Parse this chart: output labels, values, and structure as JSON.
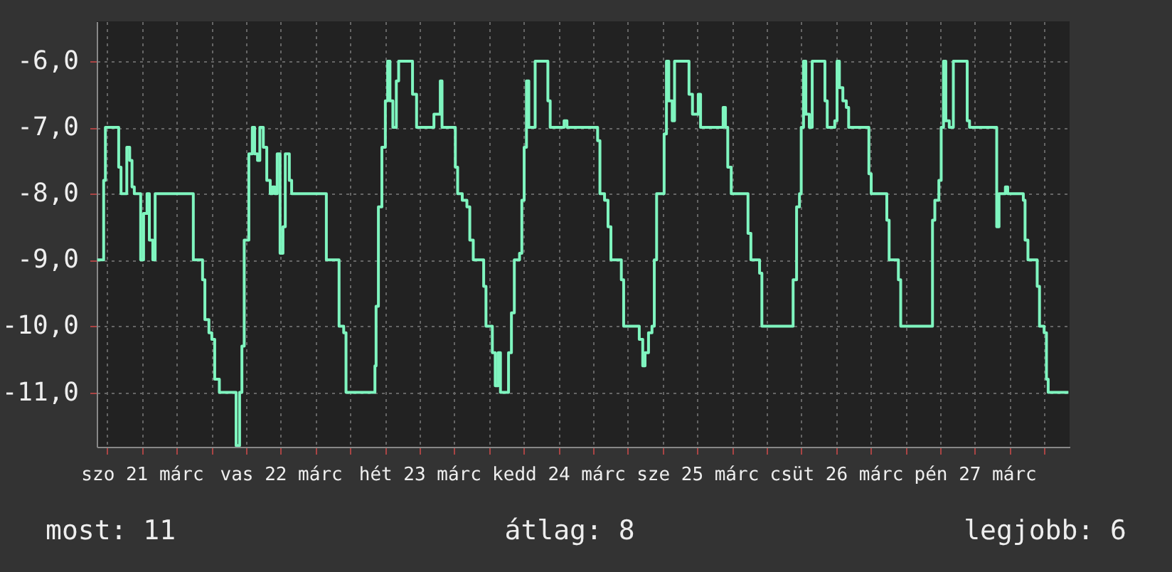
{
  "chart_data": {
    "type": "step",
    "color": "#7ff5bf",
    "x": [
      "--03-21T04:18",
      "--03-21T05:24",
      "--03-21T05:42",
      "--03-21T08:00",
      "--03-21T08:24",
      "--03-21T09:24",
      "--03-21T09:54",
      "--03-21T10:18",
      "--03-21T10:42",
      "--03-21T11:48",
      "--03-21T12:18",
      "--03-21T12:54",
      "--03-21T13:18",
      "--03-21T13:54",
      "--03-21T14:18",
      "--03-21T20:54",
      "--03-21T22:30",
      "--03-21T22:54",
      "--03-21T23:36",
      "--03-22T00:06",
      "--03-22T00:36",
      "--03-22T01:24",
      "--03-22T04:18",
      "--03-22T04:54",
      "--03-22T05:18",
      "--03-22T05:42",
      "--03-22T06:30",
      "--03-22T07:06",
      "--03-22T07:30",
      "--03-22T08:00",
      "--03-22T08:24",
      "--03-22T09:00",
      "--03-22T09:36",
      "--03-22T10:12",
      "--03-22T10:36",
      "--03-22T11:00",
      "--03-22T11:24",
      "--03-22T11:54",
      "--03-22T12:24",
      "--03-22T12:48",
      "--03-22T13:30",
      "--03-22T13:54",
      "--03-22T19:54",
      "--03-22T22:06",
      "--03-22T22:54",
      "--03-22T23:18",
      "--03-23T04:18",
      "--03-23T04:30",
      "--03-23T04:54",
      "--03-23T05:30",
      "--03-23T06:06",
      "--03-23T06:30",
      "--03-23T06:54",
      "--03-23T07:24",
      "--03-23T08:00",
      "--03-23T08:24",
      "--03-23T10:48",
      "--03-23T11:30",
      "--03-23T14:30",
      "--03-23T15:36",
      "--03-23T15:54",
      "--03-23T18:12",
      "--03-23T18:36",
      "--03-23T19:24",
      "--03-23T20:12",
      "--03-23T20:42",
      "--03-23T21:18",
      "--03-23T23:06",
      "--03-23T23:30",
      "--03-24T00:36",
      "--03-24T01:06",
      "--03-24T01:36",
      "--03-24T02:00",
      "--03-24T03:24",
      "--03-24T03:54",
      "--03-24T04:24",
      "--03-24T05:18",
      "--03-24T05:42",
      "--03-24T06:06",
      "--03-24T06:30",
      "--03-24T06:54",
      "--03-24T08:00",
      "--03-24T10:12",
      "--03-24T10:36",
      "--03-24T13:00",
      "--03-24T13:30",
      "--03-24T18:48",
      "--03-24T19:12",
      "--03-24T20:00",
      "--03-24T20:36",
      "--03-24T21:06",
      "--03-24T22:54",
      "--03-24T23:18",
      "--03-25T02:00",
      "--03-25T02:36",
      "--03-25T03:00",
      "--03-25T03:36",
      "--03-25T04:12",
      "--03-25T04:36",
      "--03-25T05:00",
      "--03-25T06:18",
      "--03-25T06:42",
      "--03-25T07:06",
      "--03-25T07:42",
      "--03-25T08:06",
      "--03-25T10:36",
      "--03-25T11:12",
      "--03-25T12:12",
      "--03-25T12:36",
      "--03-25T16:30",
      "--03-25T16:54",
      "--03-25T17:18",
      "--03-25T17:54",
      "--03-25T20:48",
      "--03-25T21:18",
      "--03-25T22:48",
      "--03-25T23:12",
      "--03-26T04:36",
      "--03-26T05:12",
      "--03-26T05:42",
      "--03-26T06:00",
      "--03-26T06:24",
      "--03-26T06:48",
      "--03-26T07:24",
      "--03-26T07:54",
      "--03-26T10:06",
      "--03-26T10:30",
      "--03-26T11:48",
      "--03-26T12:12",
      "--03-26T12:36",
      "--03-26T13:12",
      "--03-26T13:48",
      "--03-26T14:12",
      "--03-26T17:42",
      "--03-26T18:06",
      "--03-26T20:48",
      "--03-26T21:12",
      "--03-26T22:48",
      "--03-26T23:12",
      "--03-27T04:42",
      "--03-27T05:06",
      "--03-27T05:48",
      "--03-27T06:12",
      "--03-27T06:36",
      "--03-27T07:00",
      "--03-27T07:36",
      "--03-27T08:18",
      "--03-27T10:42",
      "--03-27T11:06",
      "--03-27T15:48",
      "--03-27T16:12",
      "--03-27T17:18",
      "--03-27T17:42",
      "--03-27T20:24",
      "--03-27T20:42",
      "--03-27T21:12",
      "--03-27T22:48",
      "--03-27T23:12",
      "--03-28T00:00",
      "--03-28T00:24",
      "--03-28T00:42",
      "--03-28T04:12"
    ],
    "values": [
      -9,
      -7.8,
      -7,
      -7.6,
      -8,
      -7.3,
      -7.5,
      -7.9,
      -8,
      -9,
      -8.3,
      -8,
      -8.7,
      -9,
      -8,
      -9,
      -9.3,
      -9.9,
      -10.1,
      -10.2,
      -10.8,
      -11,
      -11.8,
      -11,
      -10.3,
      -8.7,
      -7.4,
      -7,
      -7.4,
      -7.5,
      -7,
      -7.3,
      -7.8,
      -8,
      -7.9,
      -8,
      -7.4,
      -8.9,
      -8.5,
      -7.4,
      -7.8,
      -8,
      -9,
      -10,
      -10.1,
      -11,
      -10.6,
      -9.7,
      -8.2,
      -7.3,
      -6.6,
      -6,
      -6.6,
      -7,
      -6.3,
      -6,
      -6.5,
      -7,
      -6.8,
      -6.3,
      -7,
      -7.6,
      -8,
      -8.1,
      -8.2,
      -8.7,
      -9,
      -9.4,
      -10,
      -10.4,
      -10.9,
      -10.4,
      -11,
      -10.4,
      -9.8,
      -9,
      -8.9,
      -8.1,
      -7.3,
      -6.3,
      -7,
      -6,
      -6.6,
      -7,
      -6.9,
      -7,
      -7.2,
      -8,
      -8.1,
      -8.5,
      -9,
      -9.3,
      -10,
      -10.2,
      -10.6,
      -10.4,
      -10.1,
      -10,
      -9,
      -8,
      -7.1,
      -6,
      -6.6,
      -6.9,
      -6,
      -6.5,
      -6.8,
      -6.5,
      -7,
      -6.7,
      -7,
      -7.6,
      -8,
      -8.6,
      -9,
      -9.2,
      -10,
      -9.3,
      -8.2,
      -8,
      -7,
      -6,
      -6.8,
      -7,
      -6,
      -6.6,
      -7,
      -6.9,
      -6,
      -6.4,
      -6.6,
      -6.7,
      -7,
      -7.7,
      -8,
      -8.4,
      -9,
      -9.3,
      -10,
      -8.4,
      -8.1,
      -7.8,
      -7,
      -6,
      -6.9,
      -7,
      -6,
      -6.9,
      -7,
      -8.5,
      -8,
      -7.9,
      -8,
      -8.1,
      -8.7,
      -9,
      -9.4,
      -10,
      -10.1,
      -10.8,
      -11,
      -11
    ],
    "xlim": [
      "--03-21T04:12",
      "--03-28T04:24"
    ],
    "xticks": [
      {
        "value": "--03-21T06:00",
        "label": null
      },
      {
        "value": "--03-21T12:00",
        "label": "szo 21 márc"
      },
      {
        "value": "--03-21T18:00",
        "label": null
      },
      {
        "value": "--03-22T00:00",
        "label": null
      },
      {
        "value": "--03-22T06:00",
        "label": null
      },
      {
        "value": "--03-22T12:00",
        "label": "vas 22 márc"
      },
      {
        "value": "--03-22T18:00",
        "label": null
      },
      {
        "value": "--03-23T00:00",
        "label": null
      },
      {
        "value": "--03-23T06:00",
        "label": null
      },
      {
        "value": "--03-23T12:00",
        "label": "hét 23 márc"
      },
      {
        "value": "--03-23T18:00",
        "label": null
      },
      {
        "value": "--03-24T00:00",
        "label": null
      },
      {
        "value": "--03-24T06:00",
        "label": null
      },
      {
        "value": "--03-24T12:00",
        "label": "kedd 24 márc"
      },
      {
        "value": "--03-24T18:00",
        "label": null
      },
      {
        "value": "--03-25T00:00",
        "label": null
      },
      {
        "value": "--03-25T06:00",
        "label": null
      },
      {
        "value": "--03-25T12:00",
        "label": "sze 25 márc"
      },
      {
        "value": "--03-25T18:00",
        "label": null
      },
      {
        "value": "--03-26T00:00",
        "label": null
      },
      {
        "value": "--03-26T06:00",
        "label": null
      },
      {
        "value": "--03-26T12:00",
        "label": "csüt 26 márc"
      },
      {
        "value": "--03-26T18:00",
        "label": null
      },
      {
        "value": "--03-27T00:00",
        "label": null
      },
      {
        "value": "--03-27T06:00",
        "label": null
      },
      {
        "value": "--03-27T12:00",
        "label": "pén 27 márc"
      },
      {
        "value": "--03-27T18:00",
        "label": null
      },
      {
        "value": "--03-28T00:00",
        "label": null
      }
    ],
    "ylim": [
      -11.82,
      -5.4
    ],
    "yticks": [
      {
        "value": -11,
        "label": "-11,0"
      },
      {
        "value": -10,
        "label": "-10,0"
      },
      {
        "value": -9,
        "label": "-9,0"
      },
      {
        "value": -8,
        "label": "-8,0"
      },
      {
        "value": -7,
        "label": "-7,0"
      },
      {
        "value": -6,
        "label": "-6,0"
      }
    ],
    "grid": true,
    "annotations": [
      "most: 11",
      "átlag: 8",
      "legjobb: 6"
    ]
  }
}
